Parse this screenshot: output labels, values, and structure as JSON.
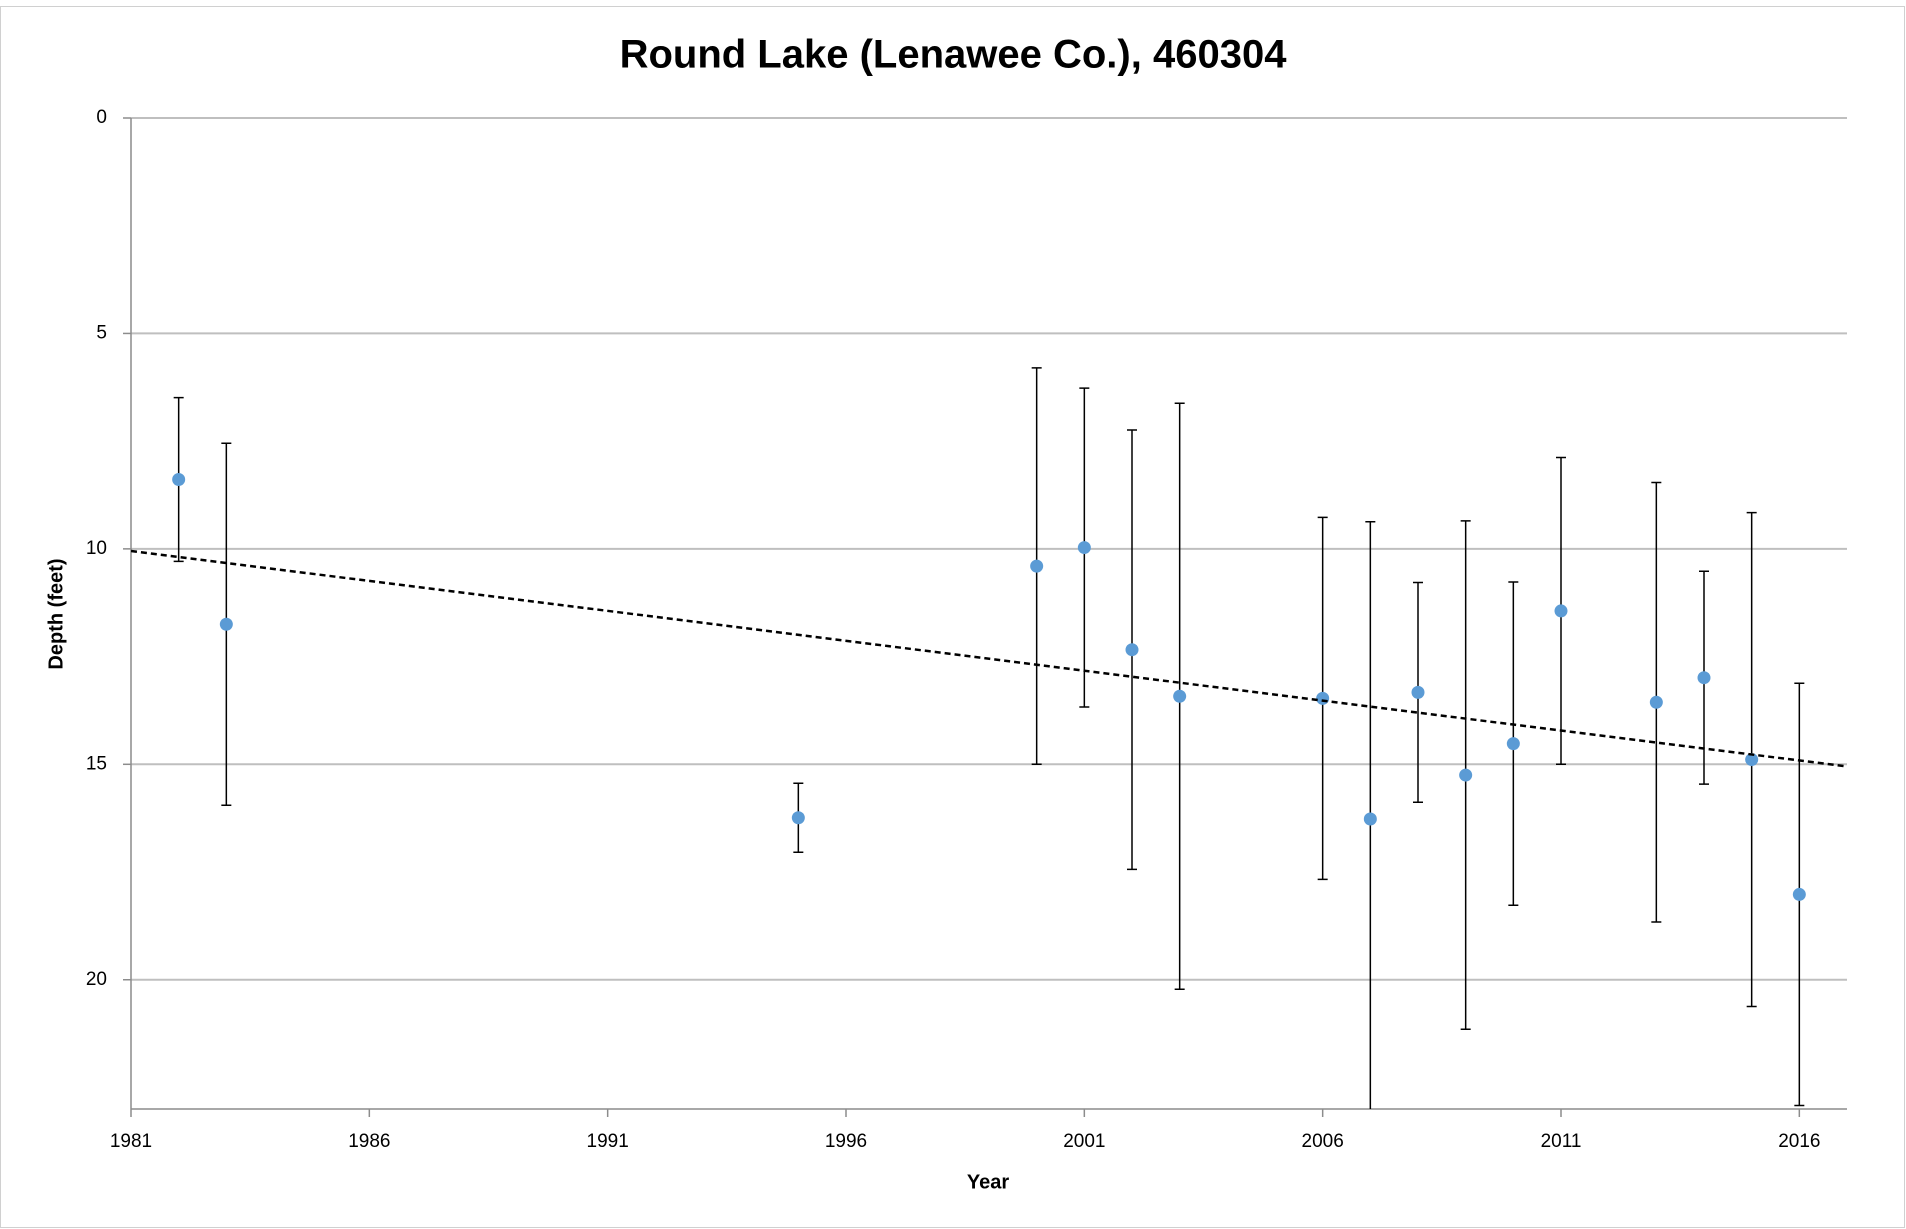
{
  "chart_data": {
    "type": "scatter",
    "title": "Round Lake (Lenawee Co.), 460304",
    "x_label": "Year",
    "y_label": "Depth (feet)",
    "xlim": [
      1981,
      2017
    ],
    "xticks": [
      1981,
      1986,
      1991,
      1996,
      2001,
      2006,
      2011,
      2016
    ],
    "ylim": [
      0,
      23
    ],
    "yticks": [
      0,
      5,
      10,
      15,
      20
    ],
    "y_inverted": true,
    "grid": true,
    "series": [
      {
        "name": "Depth",
        "color": "#5b9bd5",
        "x": [
          1982,
          1983,
          1995,
          2000,
          2001,
          2002,
          2003,
          2006,
          2007,
          2008,
          2009,
          2010,
          2011,
          2013,
          2014,
          2015,
          2016
        ],
        "values": [
          8.39,
          11.75,
          16.24,
          10.4,
          9.97,
          12.34,
          13.42,
          13.47,
          16.27,
          13.33,
          15.25,
          14.52,
          11.44,
          13.56,
          12.99,
          14.89,
          18.02
        ],
        "errors": [
          1.9,
          4.2,
          0.8,
          4.6,
          3.7,
          5.1,
          6.8,
          4.2,
          6.9,
          2.55,
          5.9,
          3.75,
          3.56,
          5.1,
          2.47,
          5.73,
          4.9
        ]
      }
    ],
    "trendline": {
      "x": [
        1981,
        2017
      ],
      "values": [
        10.05,
        15.05
      ],
      "color": "#000000"
    }
  }
}
